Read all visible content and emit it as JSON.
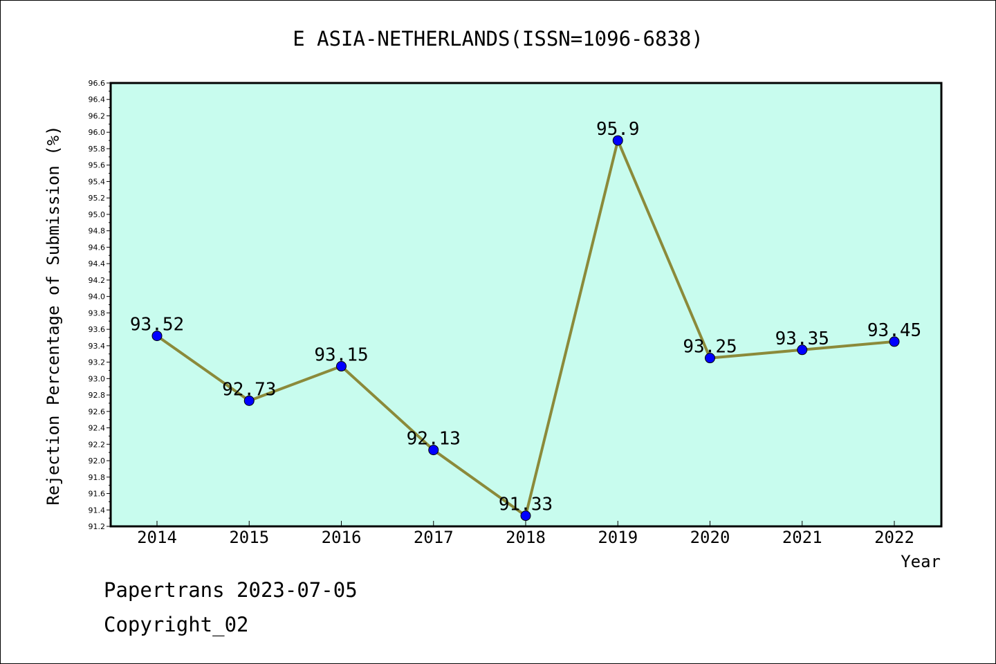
{
  "chart_data": {
    "type": "line",
    "title": "E ASIA-NETHERLANDS(ISSN=1096-6838)",
    "xlabel": "Year",
    "ylabel": "Rejection Percentage of Submission (%)",
    "categories": [
      "2014",
      "2015",
      "2016",
      "2017",
      "2018",
      "2019",
      "2020",
      "2021",
      "2022"
    ],
    "series": [
      {
        "values": [
          93.52,
          92.73,
          93.15,
          92.13,
          91.33,
          95.9,
          93.25,
          93.35,
          93.45
        ]
      }
    ],
    "data_labels": [
      "93.52",
      "92.73",
      "93.15",
      "92.13",
      "91.33",
      "95.9",
      "93.25",
      "93.35",
      "93.45"
    ],
    "ylim": [
      91.2,
      96.6
    ],
    "ytick_step": 0.2,
    "grid": false,
    "colors": {
      "plot_background": "#c8fcee",
      "line": "#8b8a3a",
      "marker": "#0000ff"
    }
  },
  "footer": {
    "line1": "Papertrans 2023-07-05",
    "line2": "Copyright_02"
  }
}
